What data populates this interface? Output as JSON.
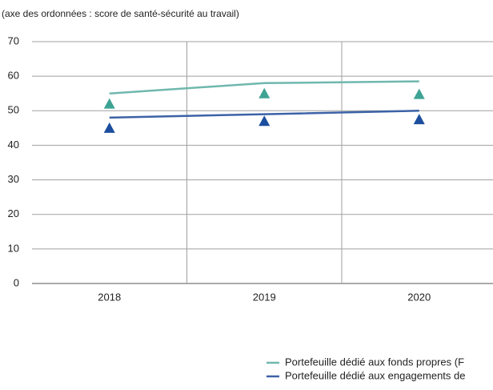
{
  "chart_data": {
    "type": "line",
    "subtitle": "(axe des ordonnées : score de santé-sécurité au travail)",
    "categories": [
      "2018",
      "2019",
      "2020"
    ],
    "series": [
      {
        "name": "Portefeuille dédié aux fonds propres (F",
        "color": "#6fb8ae",
        "values": [
          55,
          58,
          58.5
        ],
        "marker_color": "#3fa394",
        "marker_values": [
          52,
          55,
          54.8
        ]
      },
      {
        "name": "Portefeuille dédié aux engagements de",
        "color": "#3c62a6",
        "values": [
          48,
          49,
          50
        ],
        "marker_color": "#1b4e9e",
        "marker_values": [
          45,
          47,
          47.5
        ]
      }
    ],
    "ylim": [
      0,
      70
    ],
    "yticks": [
      0,
      10,
      20,
      30,
      40,
      50,
      60,
      70
    ],
    "grid": true
  }
}
